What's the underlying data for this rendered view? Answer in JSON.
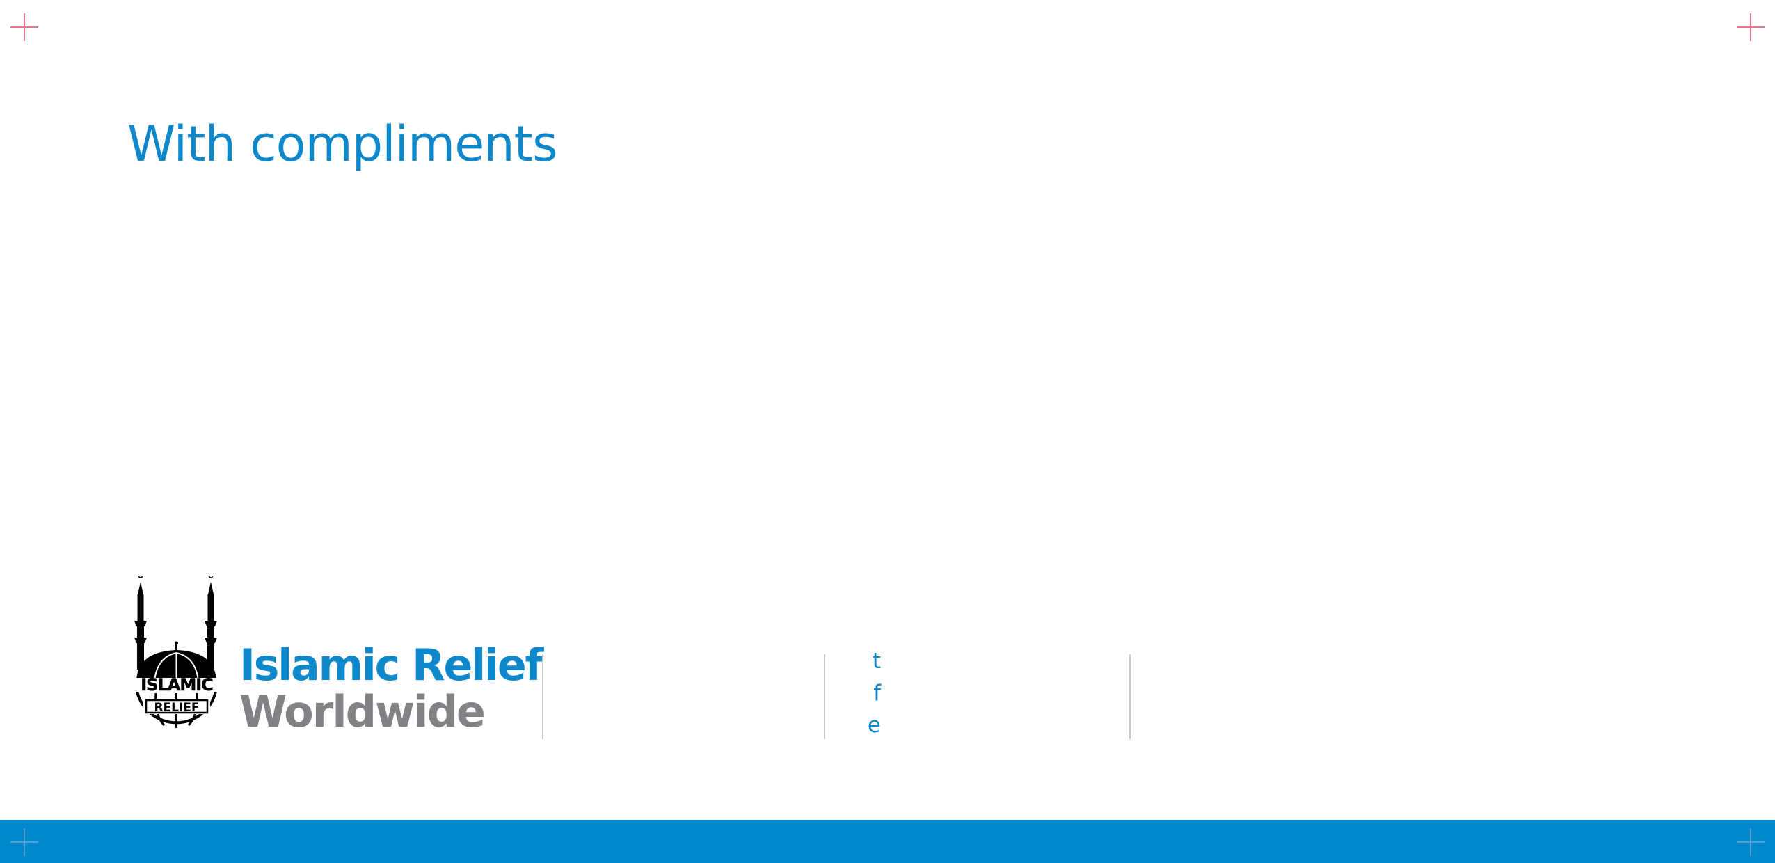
{
  "heading": "With compliments",
  "brand": {
    "logo_text_top": "ISLAMIC",
    "logo_text_bottom": "RELIEF",
    "name_line1": "Islamic Relief",
    "name_line2": "Worldwide",
    "primary_color": "#0f88cb",
    "secondary_color": "#808285",
    "bar_color": "#0088cf"
  },
  "contact": {
    "labels": [
      "t",
      "f",
      "e"
    ]
  },
  "icons": {
    "logo": "mosque-globe-logo",
    "crop_marks": "registration-crosshair"
  }
}
